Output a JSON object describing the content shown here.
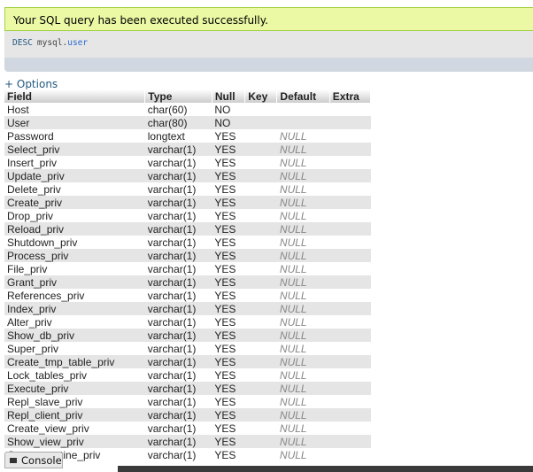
{
  "message": "Your SQL query has been executed successfully.",
  "query": {
    "keyword": "DESC",
    "database": "mysql.",
    "table": "user"
  },
  "options_link": "+ Options",
  "table": {
    "headers": [
      "Field",
      "Type",
      "Null",
      "Key",
      "Default",
      "Extra"
    ],
    "rows": [
      {
        "field": "Host",
        "type": "char(60)",
        "null": "NO"
      },
      {
        "field": "User",
        "type": "char(80)",
        "null": "NO"
      },
      {
        "field": "Password",
        "type": "longtext",
        "null": "YES",
        "default": "NULL"
      },
      {
        "field": "Select_priv",
        "type": "varchar(1)",
        "null": "YES",
        "default": "NULL"
      },
      {
        "field": "Insert_priv",
        "type": "varchar(1)",
        "null": "YES",
        "default": "NULL"
      },
      {
        "field": "Update_priv",
        "type": "varchar(1)",
        "null": "YES",
        "default": "NULL"
      },
      {
        "field": "Delete_priv",
        "type": "varchar(1)",
        "null": "YES",
        "default": "NULL"
      },
      {
        "field": "Create_priv",
        "type": "varchar(1)",
        "null": "YES",
        "default": "NULL"
      },
      {
        "field": "Drop_priv",
        "type": "varchar(1)",
        "null": "YES",
        "default": "NULL"
      },
      {
        "field": "Reload_priv",
        "type": "varchar(1)",
        "null": "YES",
        "default": "NULL"
      },
      {
        "field": "Shutdown_priv",
        "type": "varchar(1)",
        "null": "YES",
        "default": "NULL"
      },
      {
        "field": "Process_priv",
        "type": "varchar(1)",
        "null": "YES",
        "default": "NULL"
      },
      {
        "field": "File_priv",
        "type": "varchar(1)",
        "null": "YES",
        "default": "NULL"
      },
      {
        "field": "Grant_priv",
        "type": "varchar(1)",
        "null": "YES",
        "default": "NULL"
      },
      {
        "field": "References_priv",
        "type": "varchar(1)",
        "null": "YES",
        "default": "NULL"
      },
      {
        "field": "Index_priv",
        "type": "varchar(1)",
        "null": "YES",
        "default": "NULL"
      },
      {
        "field": "Alter_priv",
        "type": "varchar(1)",
        "null": "YES",
        "default": "NULL"
      },
      {
        "field": "Show_db_priv",
        "type": "varchar(1)",
        "null": "YES",
        "default": "NULL"
      },
      {
        "field": "Super_priv",
        "type": "varchar(1)",
        "null": "YES",
        "default": "NULL"
      },
      {
        "field": "Create_tmp_table_priv",
        "type": "varchar(1)",
        "null": "YES",
        "default": "NULL"
      },
      {
        "field": "Lock_tables_priv",
        "type": "varchar(1)",
        "null": "YES",
        "default": "NULL"
      },
      {
        "field": "Execute_priv",
        "type": "varchar(1)",
        "null": "YES",
        "default": "NULL"
      },
      {
        "field": "Repl_slave_priv",
        "type": "varchar(1)",
        "null": "YES",
        "default": "NULL"
      },
      {
        "field": "Repl_client_priv",
        "type": "varchar(1)",
        "null": "YES",
        "default": "NULL"
      },
      {
        "field": "Create_view_priv",
        "type": "varchar(1)",
        "null": "YES",
        "default": "NULL"
      },
      {
        "field": "Show_view_priv",
        "type": "varchar(1)",
        "null": "YES",
        "default": "NULL"
      },
      {
        "field": "Create_routine_priv",
        "type": "varchar(1)",
        "null": "YES",
        "default": "NULL"
      }
    ]
  },
  "console": "Console"
}
